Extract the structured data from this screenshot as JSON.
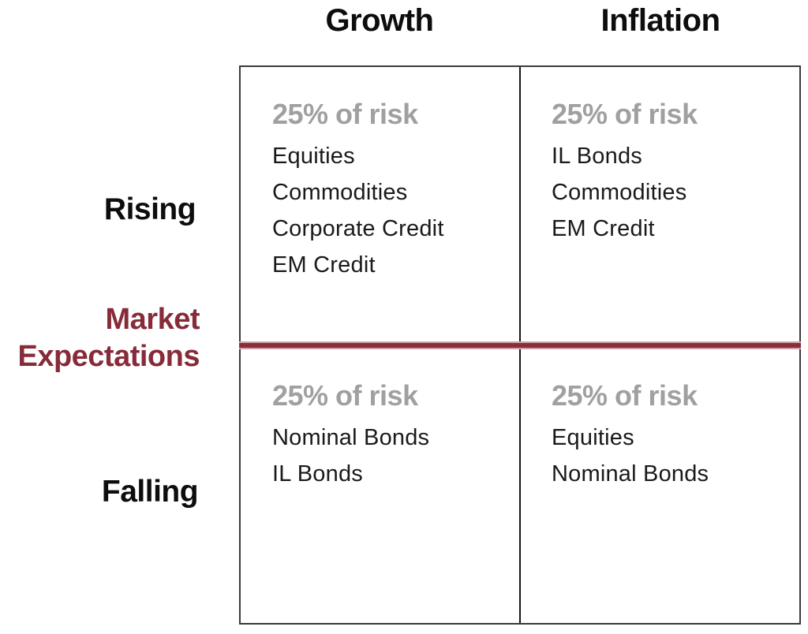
{
  "colors": {
    "accent_maroon": "#872B39",
    "line_maroon": "#8B2E3C",
    "line_halo": "#CDA3AA",
    "muted_gray": "#A0A0A0",
    "text_black": "#1A1A1A",
    "border_gray": "#3A3A3A",
    "divider_black": "#161616"
  },
  "columns": [
    {
      "label": "Growth"
    },
    {
      "label": "Inflation"
    }
  ],
  "rows": [
    {
      "label": "Rising"
    },
    {
      "label": "Falling"
    }
  ],
  "axis_label": {
    "line1": "Market",
    "line2": "Expectations"
  },
  "quadrants": [
    {
      "column": "Growth",
      "row": "Rising",
      "risk": "25% of risk",
      "assets": [
        "Equities",
        "Commodities",
        "Corporate Credit",
        "EM Credit"
      ]
    },
    {
      "column": "Inflation",
      "row": "Rising",
      "risk": "25% of risk",
      "assets": [
        "IL Bonds",
        "Commodities",
        "EM Credit"
      ]
    },
    {
      "column": "Growth",
      "row": "Falling",
      "risk": "25% of risk",
      "assets": [
        "Nominal Bonds",
        "IL Bonds"
      ]
    },
    {
      "column": "Inflation",
      "row": "Falling",
      "risk": "25% of risk",
      "assets": [
        "Equities",
        "Nominal Bonds"
      ]
    }
  ]
}
